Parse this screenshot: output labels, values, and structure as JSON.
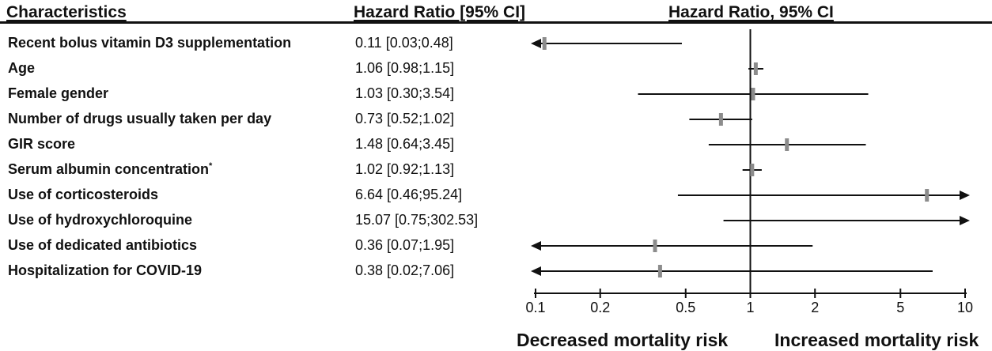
{
  "headers": {
    "characteristics": "Characteristics",
    "hazard_ratio_ci": "Hazard Ratio [95% CI]",
    "plot_title": "Hazard Ratio, 95% CI"
  },
  "rows": [
    {
      "label": "Recent bolus vitamin D3 supplementation",
      "ci_text": "0.11 [0.03;0.48]"
    },
    {
      "label": "Age",
      "ci_text": "1.06 [0.98;1.15]"
    },
    {
      "label": "Female gender",
      "ci_text": "1.03 [0.30;3.54]"
    },
    {
      "label": "Number of drugs usually taken per day",
      "ci_text": "0.73 [0.52;1.02]"
    },
    {
      "label": "GIR score",
      "ci_text": "1.48 [0.64;3.45]"
    },
    {
      "label": "Serum albumin concentration",
      "ci_text": "1.02 [0.92;1.13]",
      "sup": "*"
    },
    {
      "label": "Use of corticosteroids",
      "ci_text": "6.64 [0.46;95.24]"
    },
    {
      "label": "Use of hydroxychloroquine",
      "ci_text": "15.07 [0.75;302.53]"
    },
    {
      "label": "Use of dedicated antibiotics",
      "ci_text": "0.36 [0.07;1.95]"
    },
    {
      "label": "Hospitalization for COVID-19",
      "ci_text": "0.38 [0.02;7.06]"
    }
  ],
  "chart_data": {
    "type": "forest",
    "x_scale": "log",
    "xlim": [
      0.1,
      10
    ],
    "reference_line": 1,
    "x_ticks": [
      0.1,
      0.2,
      0.5,
      1,
      2,
      5,
      10
    ],
    "x_tick_labels": [
      "0.1",
      "0.2",
      "0.5",
      "1",
      "2",
      "5",
      "10"
    ],
    "left_annotation": "Decreased mortality risk",
    "right_annotation": "Increased mortality risk",
    "categories": [
      "Recent bolus vitamin D3 supplementation",
      "Age",
      "Female gender",
      "Number of drugs usually taken per day",
      "GIR score",
      "Serum albumin concentration",
      "Use of corticosteroids",
      "Use of hydroxychloroquine",
      "Use of dedicated antibiotics",
      "Hospitalization for COVID-19"
    ],
    "hr": [
      0.11,
      1.06,
      1.03,
      0.73,
      1.48,
      1.02,
      6.64,
      15.07,
      0.36,
      0.38
    ],
    "ci_lower": [
      0.03,
      0.98,
      0.3,
      0.52,
      0.64,
      0.92,
      0.46,
      0.75,
      0.07,
      0.02
    ],
    "ci_upper": [
      0.48,
      1.15,
      3.54,
      1.02,
      3.45,
      1.13,
      95.24,
      302.53,
      1.95,
      7.06
    ],
    "colors": {
      "line": "#111111",
      "point_estimate": "#8c8c8c",
      "reference_line": "#111111"
    }
  }
}
